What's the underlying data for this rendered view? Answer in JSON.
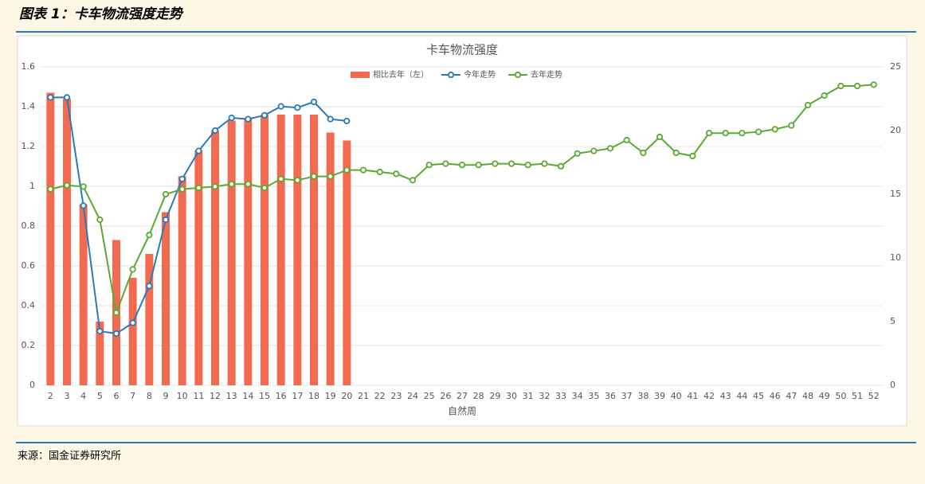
{
  "header": {
    "title": "图表 1：卡车物流强度走势"
  },
  "footer": {
    "source": "来源：国金证券研究所"
  },
  "chart_data": {
    "type": "bar",
    "title": "卡车物流强度",
    "x_label": "自然周",
    "categories": [
      "2",
      "3",
      "4",
      "5",
      "6",
      "7",
      "8",
      "9",
      "10",
      "11",
      "12",
      "13",
      "14",
      "15",
      "16",
      "17",
      "18",
      "19",
      "20",
      "21",
      "22",
      "23",
      "24",
      "25",
      "26",
      "27",
      "28",
      "29",
      "30",
      "31",
      "32",
      "33",
      "34",
      "35",
      "36",
      "37",
      "38",
      "39",
      "40",
      "41",
      "42",
      "43",
      "44",
      "45",
      "46",
      "47",
      "48",
      "49",
      "50",
      "51",
      "52"
    ],
    "ylim": [
      0,
      1.6
    ],
    "yticks": [
      0,
      0.2,
      0.4,
      0.6,
      0.8,
      1,
      1.2,
      1.4,
      1.6
    ],
    "y2lim": [
      0,
      25
    ],
    "y2ticks": [
      0,
      5,
      10,
      15,
      20,
      25
    ],
    "grid": true,
    "legend": "top",
    "series": [
      {
        "name": "相比去年（左）",
        "type": "bar",
        "color": "#f26b50",
        "values": [
          1.47,
          1.44,
          0.91,
          0.32,
          0.73,
          0.54,
          0.66,
          0.87,
          1.05,
          1.18,
          1.28,
          1.33,
          1.34,
          1.36,
          1.36,
          1.36,
          1.36,
          1.27,
          1.23,
          null,
          null,
          null,
          null,
          null,
          null,
          null,
          null,
          null,
          null,
          null,
          null,
          null,
          null,
          null,
          null,
          null,
          null,
          null,
          null,
          null,
          null,
          null,
          null,
          null,
          null,
          null,
          null,
          null,
          null,
          null,
          null
        ]
      },
      {
        "name": "今年走势",
        "type": "line",
        "axis": "y2",
        "color": "#2a7ab8",
        "values": [
          22.6,
          22.6,
          14.1,
          4.25,
          4.06,
          4.9,
          7.8,
          13,
          16.2,
          18.4,
          20,
          21,
          20.9,
          21.2,
          21.9,
          21.8,
          22.25,
          20.9,
          20.75,
          null,
          null,
          null,
          null,
          null,
          null,
          null,
          null,
          null,
          null,
          null,
          null,
          null,
          null,
          null,
          null,
          null,
          null,
          null,
          null,
          null,
          null,
          null,
          null,
          null,
          null,
          null,
          null,
          null,
          null,
          null,
          null
        ]
      },
      {
        "name": "去年走势",
        "type": "line",
        "axis": "y2",
        "color": "#5aaa32",
        "values": [
          15.4,
          15.7,
          15.6,
          13,
          5.7,
          9.1,
          11.8,
          15,
          15.4,
          15.5,
          15.6,
          15.8,
          15.8,
          15.5,
          16.2,
          16.1,
          16.4,
          16.4,
          16.9,
          16.9,
          16.75,
          16.6,
          16.1,
          17.3,
          17.4,
          17.3,
          17.3,
          17.4,
          17.4,
          17.3,
          17.4,
          17.2,
          18.2,
          18.4,
          18.6,
          19.25,
          18.25,
          19.5,
          18.25,
          18,
          19.8,
          19.8,
          19.8,
          19.9,
          20.1,
          20.4,
          22,
          22.75,
          23.5,
          23.5,
          23.6
        ]
      }
    ]
  }
}
